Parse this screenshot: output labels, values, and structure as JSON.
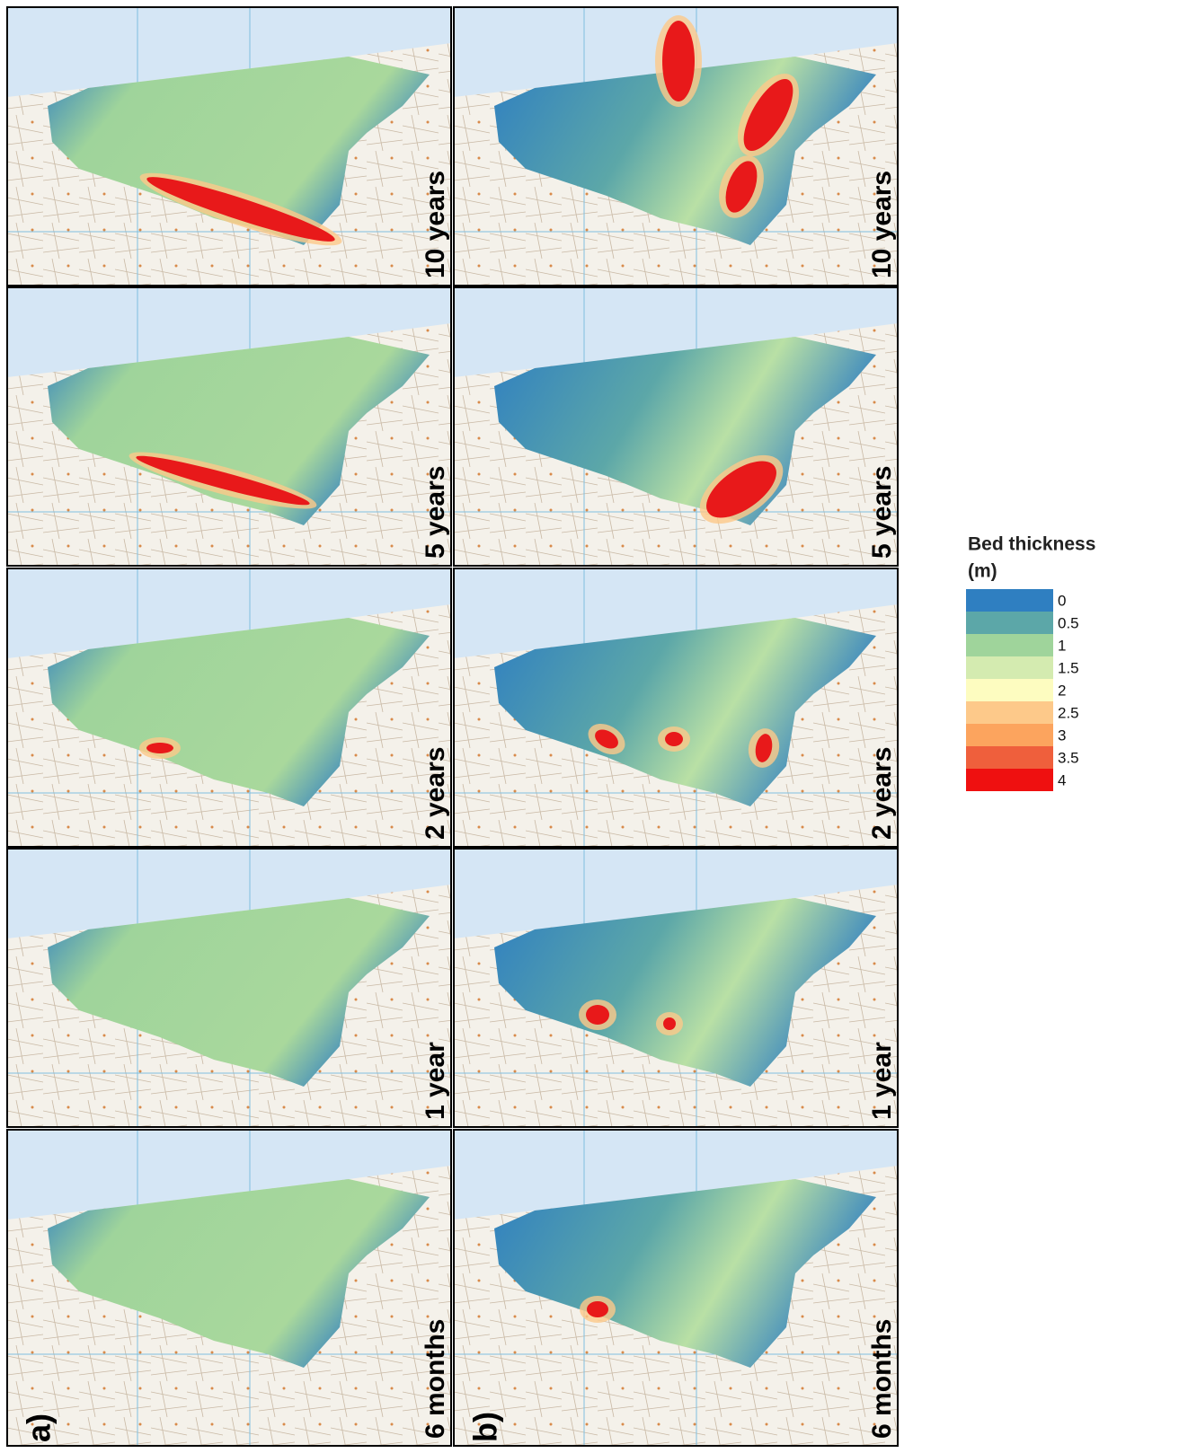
{
  "panels": [
    {
      "label": "a)",
      "rows": [
        "10 years",
        "5 years",
        "2 years",
        "1 year",
        "6 months"
      ]
    },
    {
      "label": "b)",
      "rows": [
        "10 years",
        "5 years",
        "2 years",
        "1 year",
        "6 months"
      ]
    }
  ],
  "legend": {
    "title": [
      "Bed thickness",
      "(m)"
    ],
    "entries": [
      {
        "label": "0",
        "color": "#2f7fc1"
      },
      {
        "label": "0.5",
        "color": "#5ca7a8"
      },
      {
        "label": "1",
        "color": "#9fd49b"
      },
      {
        "label": "1.5",
        "color": "#d4ebb0"
      },
      {
        "label": "2",
        "color": "#fdfcc0"
      },
      {
        "label": "2.5",
        "color": "#fdc98a"
      },
      {
        "label": "3",
        "color": "#fca45e"
      },
      {
        "label": "3.5",
        "color": "#ef5f3c"
      },
      {
        "label": "4",
        "color": "#ef1010"
      }
    ]
  }
}
